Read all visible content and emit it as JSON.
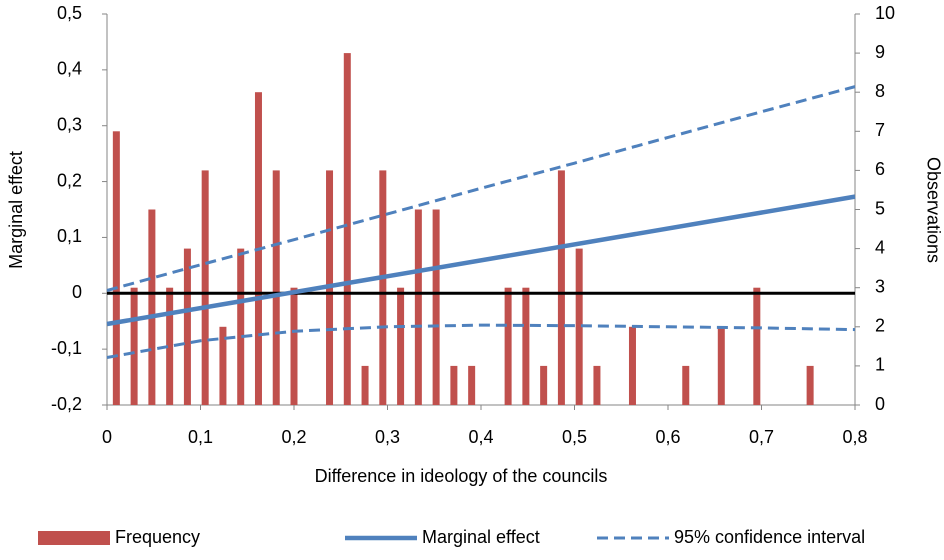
{
  "chart_data": {
    "type": "combo",
    "x_label": "Difference in ideology of the councils",
    "y_label": "Marginal effect",
    "y2_label": "Observations",
    "xlim": [
      0,
      0.8
    ],
    "xticks": [
      0,
      {
        "value": 0.1,
        "label": "0,1"
      },
      {
        "value": 0.2,
        "label": "0,2"
      },
      {
        "value": 0.3,
        "label": "0,3"
      },
      {
        "value": 0.4,
        "label": "0,4"
      },
      {
        "value": 0.5,
        "label": "0,5"
      },
      {
        "value": 0.6,
        "label": "0,6"
      },
      {
        "value": 0.7,
        "label": "0,7"
      },
      {
        "value": 0.8,
        "label": "0,8"
      }
    ],
    "ylim": [
      -0.2,
      0.5
    ],
    "yticks": [
      {
        "value": -0.2,
        "label": "-0,2"
      },
      {
        "value": -0.1,
        "label": "-0,1"
      },
      0,
      {
        "value": 0.1,
        "label": "0,1"
      },
      {
        "value": 0.2,
        "label": "0,2"
      },
      {
        "value": 0.3,
        "label": "0,3"
      },
      {
        "value": 0.4,
        "label": "0,4"
      },
      {
        "value": 0.5,
        "label": "0,5"
      }
    ],
    "y2lim": [
      0,
      10
    ],
    "y2ticks": [
      0,
      1,
      2,
      3,
      4,
      5,
      6,
      7,
      8,
      9,
      10
    ],
    "zero_line": true,
    "legend": "bottom",
    "series": [
      {
        "name": "Frequency",
        "type": "bar",
        "axis": "y2",
        "color": "#c0504d",
        "x": [
          0.01,
          0.029,
          0.048,
          0.067,
          0.086,
          0.105,
          0.124,
          0.143,
          0.162,
          0.181,
          0.2,
          0.238,
          0.257,
          0.276,
          0.295,
          0.314,
          0.333,
          0.352,
          0.371,
          0.39,
          0.429,
          0.448,
          0.467,
          0.486,
          0.505,
          0.524,
          0.562,
          0.619,
          0.657,
          0.695,
          0.752
        ],
        "values": [
          7,
          3,
          5,
          3,
          4,
          6,
          2,
          4,
          8,
          6,
          3,
          6,
          9,
          1,
          6,
          3,
          5,
          5,
          1,
          1,
          3,
          3,
          1,
          6,
          4,
          1,
          2,
          1,
          2,
          3,
          1
        ]
      },
      {
        "name": "Marginal effect",
        "type": "line",
        "color": "#4f81bd",
        "x": [
          0,
          0.8
        ],
        "values": [
          -0.055,
          0.173
        ]
      },
      {
        "name": "95% confidence interval",
        "type": "band",
        "color": "#4f81bd",
        "dashed": true,
        "x": [
          0,
          0.1,
          0.2,
          0.3,
          0.4,
          0.5,
          0.6,
          0.7,
          0.8
        ],
        "upper": [
          0.005,
          0.051,
          0.096,
          0.142,
          0.188,
          0.233,
          0.279,
          0.325,
          0.37
        ],
        "lower": [
          -0.115,
          -0.085,
          -0.068,
          -0.06,
          -0.057,
          -0.058,
          -0.06,
          -0.062,
          -0.065
        ]
      }
    ]
  }
}
